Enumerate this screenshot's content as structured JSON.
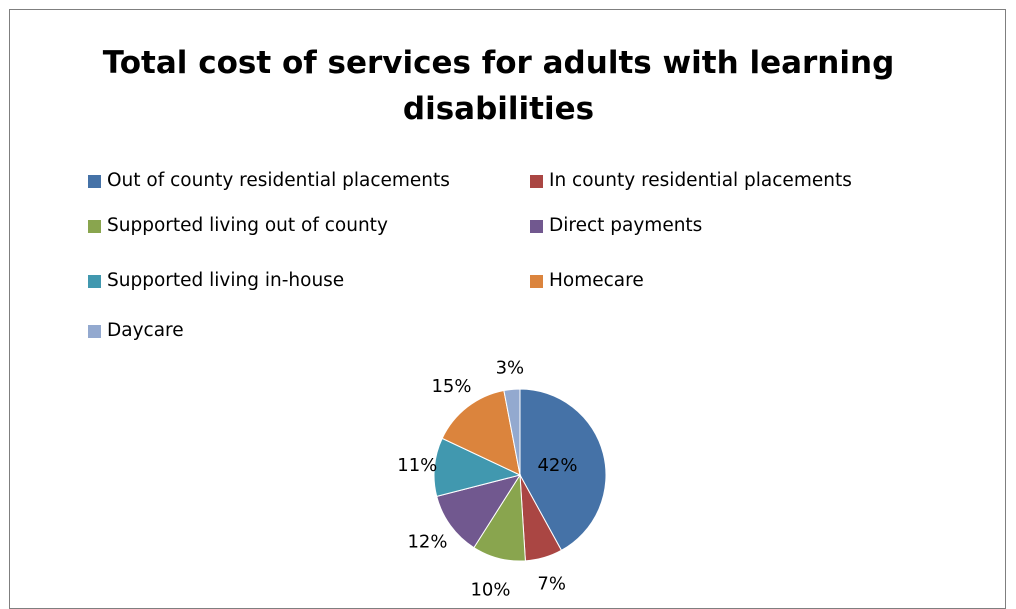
{
  "chart_data": {
    "type": "pie",
    "title": "Total cost of services for adults with learning disabilities",
    "categories": [
      "Out of county residential placements",
      "In county residential placements",
      "Supported living out of county",
      "Direct payments",
      "Supported living in-house",
      "Homecare",
      "Daycare"
    ],
    "values": [
      42,
      7,
      10,
      12,
      11,
      15,
      3
    ],
    "data_labels": [
      "42%",
      "7%",
      "10%",
      "12%",
      "11%",
      "15%",
      "3%"
    ],
    "colors": [
      "#4572a7",
      "#aa4643",
      "#89a54e",
      "#71588f",
      "#4198af",
      "#db843d",
      "#93a9cf"
    ],
    "legend_position": "top",
    "start_angle": "12 o'clock, clockwise"
  }
}
